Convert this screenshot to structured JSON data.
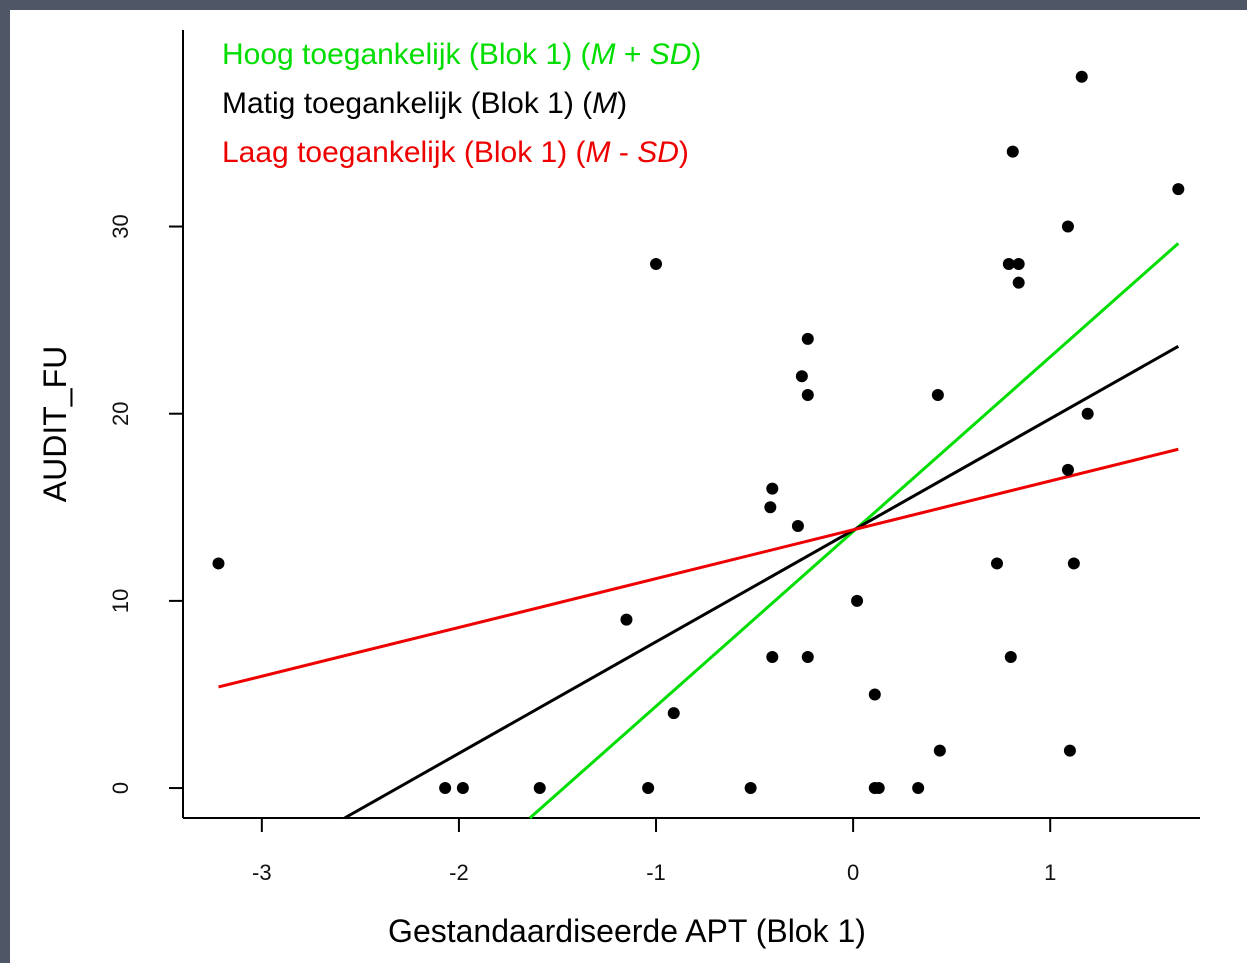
{
  "chart_data": {
    "type": "scatter",
    "xlabel": "Gestandaardiseerde APT (Blok 1)",
    "ylabel": "AUDIT_FU",
    "xlim": [
      -3.4,
      1.76
    ],
    "ylim": [
      -1.6,
      40.5
    ],
    "x_ticks": [
      "-3",
      "-2",
      "-1",
      "0",
      "1"
    ],
    "x_tick_values": [
      -3,
      -2,
      -1,
      0,
      1
    ],
    "y_ticks": [
      "0",
      "10",
      "20",
      "30"
    ],
    "y_tick_values": [
      0,
      10,
      20,
      30
    ],
    "points": [
      {
        "x": -3.22,
        "y": 12
      },
      {
        "x": -2.07,
        "y": 0
      },
      {
        "x": -1.98,
        "y": 0
      },
      {
        "x": -1.59,
        "y": 0
      },
      {
        "x": -1.15,
        "y": 9
      },
      {
        "x": -1.04,
        "y": 0
      },
      {
        "x": -1.0,
        "y": 28
      },
      {
        "x": -0.91,
        "y": 4
      },
      {
        "x": -0.52,
        "y": 0
      },
      {
        "x": -0.41,
        "y": 16
      },
      {
        "x": -0.42,
        "y": 15
      },
      {
        "x": -0.41,
        "y": 7
      },
      {
        "x": -0.28,
        "y": 14
      },
      {
        "x": -0.26,
        "y": 22
      },
      {
        "x": -0.23,
        "y": 24
      },
      {
        "x": -0.23,
        "y": 21
      },
      {
        "x": -0.23,
        "y": 7
      },
      {
        "x": 0.02,
        "y": 10
      },
      {
        "x": 0.11,
        "y": 5
      },
      {
        "x": 0.11,
        "y": 0
      },
      {
        "x": 0.13,
        "y": 0
      },
      {
        "x": 0.33,
        "y": 0
      },
      {
        "x": 0.43,
        "y": 21
      },
      {
        "x": 0.44,
        "y": 2
      },
      {
        "x": 0.73,
        "y": 12
      },
      {
        "x": 0.79,
        "y": 28
      },
      {
        "x": 0.8,
        "y": 7
      },
      {
        "x": 0.81,
        "y": 34
      },
      {
        "x": 0.84,
        "y": 28
      },
      {
        "x": 0.84,
        "y": 27
      },
      {
        "x": 1.09,
        "y": 30
      },
      {
        "x": 1.09,
        "y": 17
      },
      {
        "x": 1.1,
        "y": 2
      },
      {
        "x": 1.12,
        "y": 12
      },
      {
        "x": 1.16,
        "y": 38
      },
      {
        "x": 1.19,
        "y": 20
      },
      {
        "x": 1.65,
        "y": 32
      }
    ],
    "series": [
      {
        "name": "Hoog toegankelijk (Blok 1) (M + SD)",
        "color": "#00dd00",
        "x": [
          -1.64,
          1.65
        ],
        "y": [
          -1.6,
          29.1
        ]
      },
      {
        "name": "Matig toegankelijk (Blok 1) (M)",
        "color": "#000000",
        "x": [
          -2.58,
          1.65
        ],
        "y": [
          -1.6,
          23.6
        ]
      },
      {
        "name": "Laag toegankelijk (Blok 1) (M - SD)",
        "color": "#ee0000",
        "x": [
          -3.22,
          1.65
        ],
        "y": [
          5.4,
          18.1
        ]
      }
    ],
    "grid": false,
    "legend_position": "top-left"
  },
  "legend": {
    "items": [
      {
        "prefix": "Hoog toegankelijk (Blok 1) (",
        "m": "M",
        "mid": " + ",
        "sd": "SD",
        "suffix": ")"
      },
      {
        "prefix": "Matig toegankelijk (Blok 1) (",
        "m": "M",
        "mid": "",
        "sd": "",
        "suffix": ")"
      },
      {
        "prefix": "Laag toegankelijk (Blok 1) (",
        "m": "M",
        "mid": " - ",
        "sd": "SD",
        "suffix": ")"
      }
    ]
  }
}
